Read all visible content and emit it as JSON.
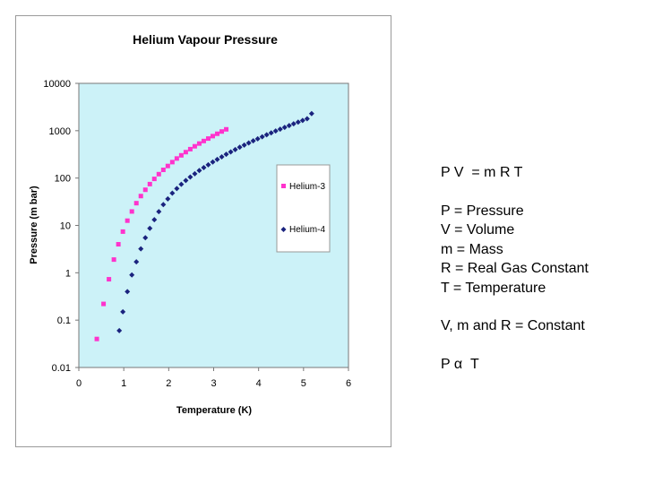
{
  "chart_data": {
    "type": "scatter",
    "title": "Helium Vapour Pressure",
    "xlabel": "Temperature (K)",
    "ylabel": "Pressure (m bar)",
    "xlim": [
      0,
      6
    ],
    "ylim": [
      0.01,
      10000
    ],
    "yscale": "log",
    "x_ticks": [
      "0",
      "1",
      "2",
      "3",
      "4",
      "5",
      "6"
    ],
    "y_ticks": [
      "0.01",
      "0.1",
      "1",
      "10",
      "100",
      "1000",
      "10000"
    ],
    "grid": false,
    "plot_background": "#ccf2f8",
    "legend_position": "right",
    "series": [
      {
        "name": "Helium-3",
        "marker": "square",
        "color": "#ff33cc",
        "x": [
          0.4,
          0.55,
          0.67,
          0.78,
          0.88,
          0.98,
          1.08,
          1.18,
          1.28,
          1.38,
          1.48,
          1.58,
          1.68,
          1.78,
          1.88,
          1.98,
          2.08,
          2.18,
          2.28,
          2.38,
          2.48,
          2.58,
          2.68,
          2.78,
          2.88,
          2.98,
          3.08,
          3.18,
          3.28
        ],
        "y": [
          0.04,
          0.22,
          0.73,
          1.9,
          4.0,
          7.4,
          12.6,
          19.7,
          29.5,
          41.7,
          56.6,
          74.6,
          96,
          121,
          149,
          180,
          217,
          259,
          302,
          353,
          408,
          469,
          536,
          606,
          683,
          769,
          862,
          962,
          1070
        ]
      },
      {
        "name": "Helium-4",
        "marker": "diamond",
        "color": "#1a237e",
        "x": [
          0.9,
          0.98,
          1.08,
          1.18,
          1.28,
          1.38,
          1.48,
          1.58,
          1.68,
          1.78,
          1.88,
          1.98,
          2.08,
          2.18,
          2.28,
          2.38,
          2.48,
          2.58,
          2.68,
          2.78,
          2.88,
          2.98,
          3.08,
          3.18,
          3.28,
          3.38,
          3.48,
          3.58,
          3.68,
          3.78,
          3.88,
          3.98,
          4.08,
          4.18,
          4.28,
          4.38,
          4.48,
          4.58,
          4.68,
          4.78,
          4.88,
          4.98,
          5.08,
          5.18
        ],
        "y": [
          0.06,
          0.15,
          0.4,
          0.9,
          1.7,
          3.2,
          5.5,
          8.7,
          13.2,
          19.5,
          27.5,
          36.3,
          47.9,
          60,
          74,
          89,
          105,
          123,
          144,
          166,
          191,
          218,
          248,
          281,
          318,
          357,
          400,
          447,
          498,
          552,
          611,
          676,
          745,
          820,
          899,
          986,
          1077,
          1176,
          1282,
          1396,
          1517,
          1647,
          1785,
          2300
        ]
      }
    ]
  },
  "notes": {
    "formula": "P V  = m R T",
    "defs": [
      "P = Pressure",
      "V = Volume",
      "m = Mass",
      "R = Real Gas Constant",
      "T = Temperature"
    ],
    "constant": "V, m and R = Constant",
    "proportional": "P α  T"
  }
}
